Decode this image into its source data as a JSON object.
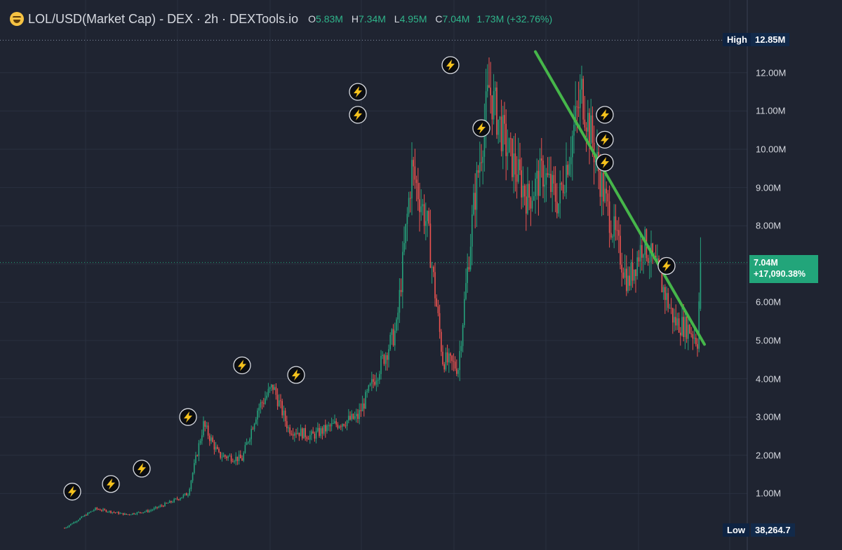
{
  "header": {
    "pair": "LOL/USD(Market Cap)",
    "exchange": "DEX",
    "interval": "2h",
    "source": "DEXTools.io",
    "open_key": "O",
    "open": "5.83M",
    "high_key": "H",
    "high": "7.34M",
    "low_key": "L",
    "low": "4.95M",
    "close_key": "C",
    "close": "7.04M",
    "change": "1.73M (+32.76%)",
    "icon": "grinning-face-icon"
  },
  "chart_data": {
    "type": "candlestick",
    "title": "LOL/USD(Market Cap) · DEX · 2h · DEXTools.io",
    "y_axis": {
      "position": "right",
      "unit": "M",
      "range": [
        0.04,
        12.85
      ],
      "tick_labels": [
        "1.00M",
        "2.00M",
        "3.00M",
        "4.00M",
        "5.00M",
        "6.00M",
        "7.00M",
        "8.00M",
        "9.00M",
        "10.00M",
        "11.00M",
        "12.00M"
      ],
      "tick_values": [
        1,
        2,
        3,
        4,
        5,
        6,
        7,
        8,
        9,
        10,
        11,
        12
      ]
    },
    "high_marker": {
      "label": "High",
      "value": "12.85M",
      "level": 12.85
    },
    "low_marker": {
      "label": "Low",
      "value": "38,264.7",
      "level": 0.038
    },
    "last_price": {
      "value": "7.04M",
      "change": "+17,090.38%",
      "level": 7.04
    },
    "trendline": {
      "color": "#46b64a",
      "from_value": 12.55,
      "to_value": 4.9
    },
    "up_color": "#26a17b",
    "down_color": "#ef5350",
    "grid": true,
    "waypoints": [
      [
        0,
        0.1
      ],
      [
        20,
        0.6
      ],
      [
        40,
        0.45
      ],
      [
        55,
        0.55
      ],
      [
        70,
        0.8
      ],
      [
        80,
        1.0
      ],
      [
        90,
        2.8
      ],
      [
        100,
        2.0
      ],
      [
        115,
        1.9
      ],
      [
        125,
        3.2
      ],
      [
        135,
        3.8
      ],
      [
        145,
        2.7
      ],
      [
        160,
        2.5
      ],
      [
        175,
        2.8
      ],
      [
        190,
        3.0
      ],
      [
        205,
        4.4
      ],
      [
        215,
        5.3
      ],
      [
        225,
        9.5
      ],
      [
        235,
        8.0
      ],
      [
        245,
        4.5
      ],
      [
        255,
        4.3
      ],
      [
        265,
        8.5
      ],
      [
        275,
        11.6
      ],
      [
        285,
        10.2
      ],
      [
        300,
        8.7
      ],
      [
        310,
        9.4
      ],
      [
        320,
        8.6
      ],
      [
        335,
        11.5
      ],
      [
        350,
        8.7
      ],
      [
        365,
        6.5
      ],
      [
        375,
        7.6
      ],
      [
        385,
        6.7
      ],
      [
        395,
        5.5
      ],
      [
        405,
        5.3
      ],
      [
        410,
        5.0
      ],
      [
        412,
        7.04
      ]
    ],
    "signal_markers": [
      {
        "index": 5,
        "value": 1.05
      },
      {
        "index": 30,
        "value": 1.25
      },
      {
        "index": 50,
        "value": 1.65
      },
      {
        "index": 80,
        "value": 3.0
      },
      {
        "index": 115,
        "value": 4.35
      },
      {
        "index": 150,
        "value": 4.1
      },
      {
        "index": 190,
        "value": 11.5
      },
      {
        "index": 190,
        "value": 10.9
      },
      {
        "index": 250,
        "value": 12.2
      },
      {
        "index": 270,
        "value": 10.55
      },
      {
        "index": 350,
        "value": 10.9
      },
      {
        "index": 350,
        "value": 10.25
      },
      {
        "index": 350,
        "value": 9.65
      },
      {
        "index": 390,
        "value": 6.95
      }
    ]
  }
}
